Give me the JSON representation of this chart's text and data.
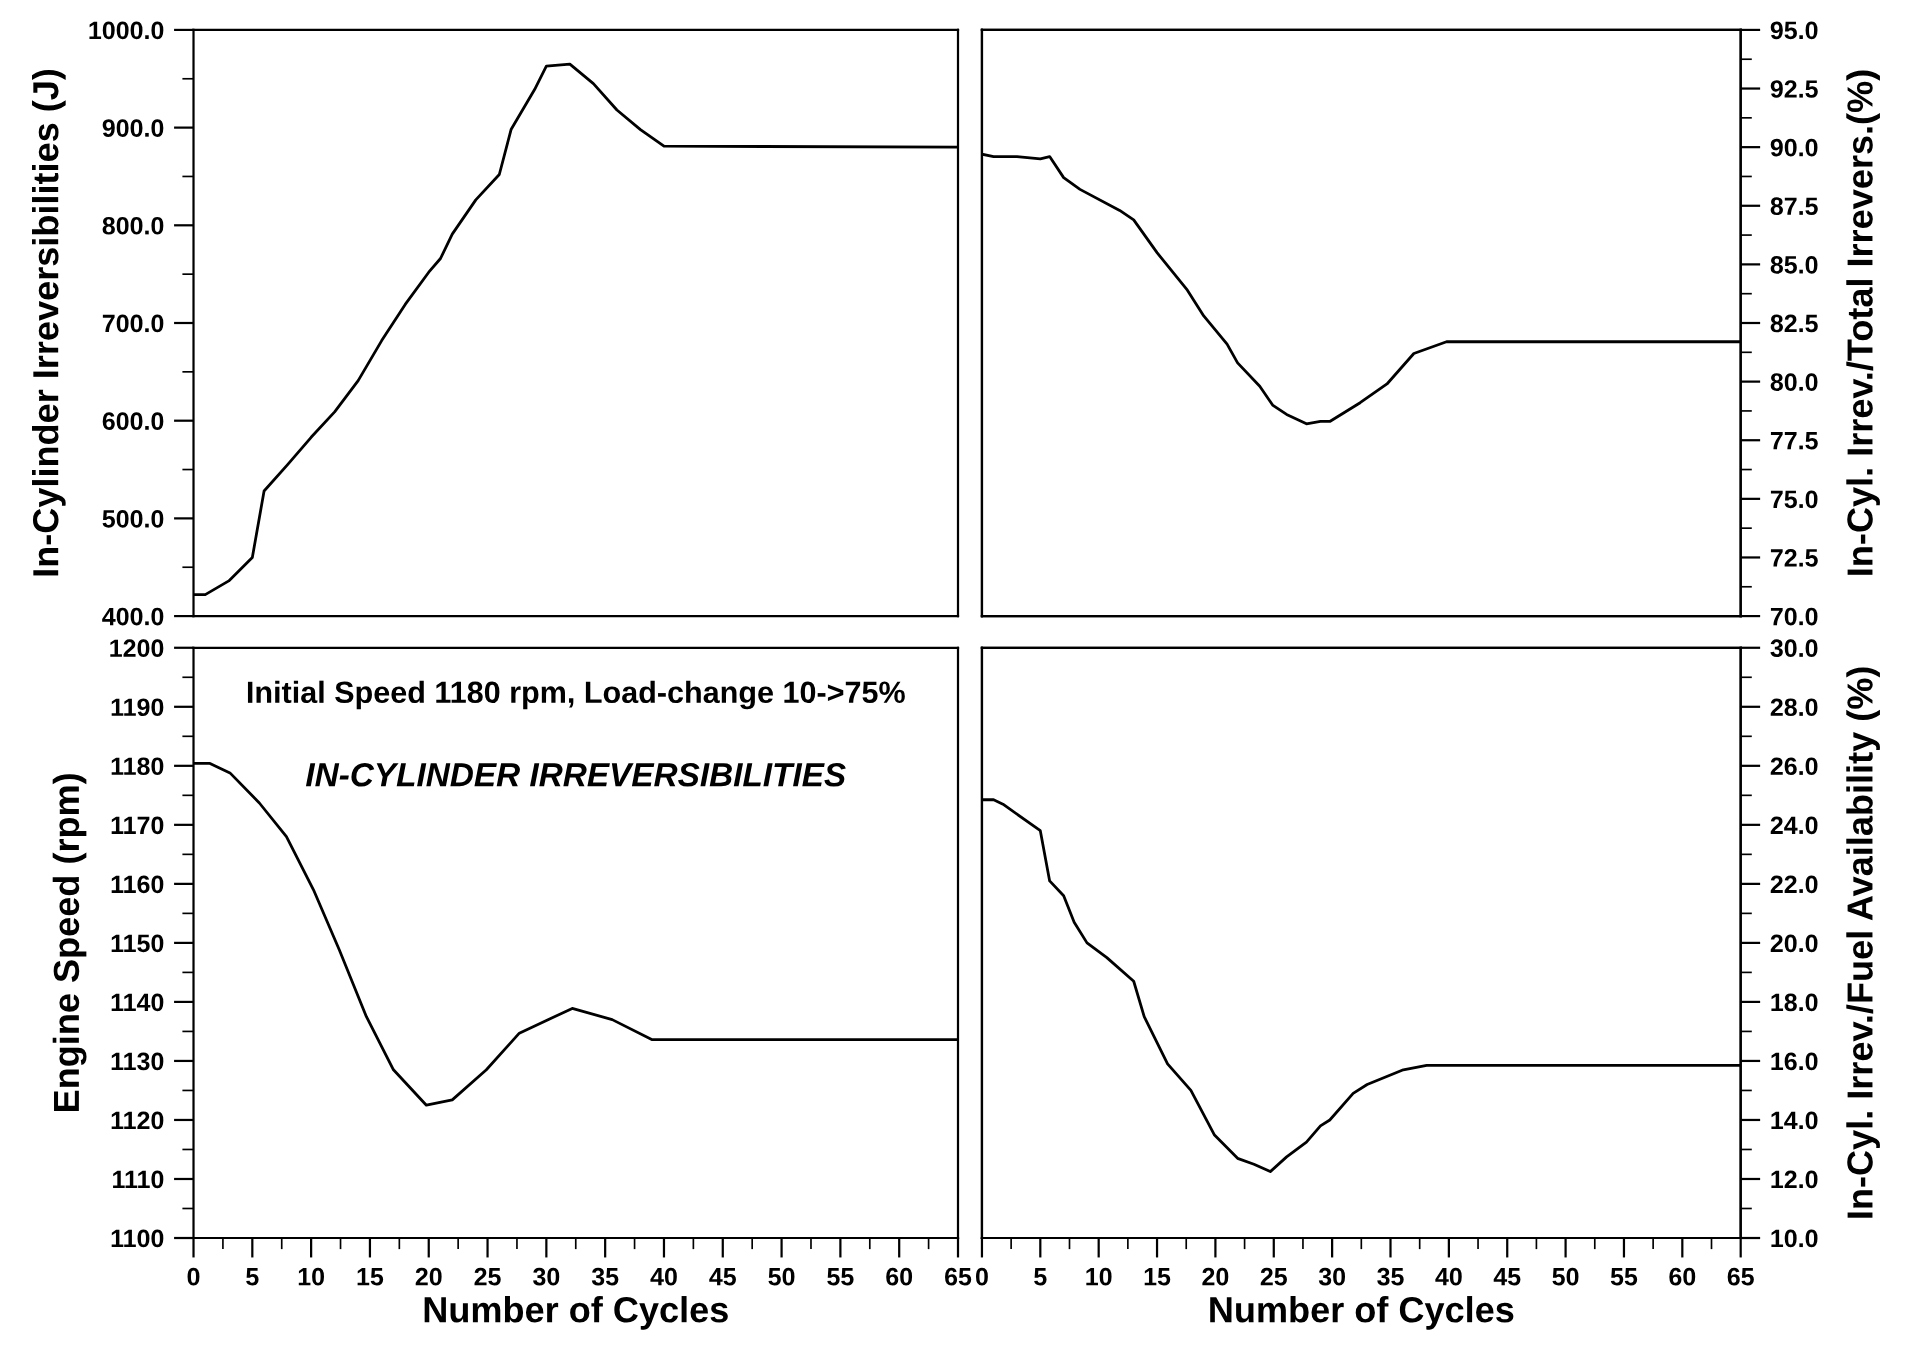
{
  "chart_data": [
    {
      "type": "line",
      "ylabel": "In-Cylinder Irreversibilities (J)",
      "xlim": [
        0,
        65
      ],
      "ylim": [
        400,
        1000
      ],
      "tick_labels": "y",
      "yticks": [
        {
          "value": 400,
          "label": "400.0"
        },
        {
          "value": 450,
          "label": null
        },
        {
          "value": 500,
          "label": "500.0"
        },
        {
          "value": 550,
          "label": null
        },
        {
          "value": 600,
          "label": "600.0"
        },
        {
          "value": 650,
          "label": null
        },
        {
          "value": 700,
          "label": "700.0"
        },
        {
          "value": 750,
          "label": null
        },
        {
          "value": 800,
          "label": "800.0"
        },
        {
          "value": 850,
          "label": null
        },
        {
          "value": 900,
          "label": "900.0"
        },
        {
          "value": 950,
          "label": null
        },
        {
          "value": 1000,
          "label": "1000.0"
        }
      ],
      "series": [
        {
          "color": "#000000",
          "x": [
            0,
            1,
            3,
            5,
            6,
            8,
            10,
            12,
            14,
            16,
            18,
            20,
            21,
            22,
            24,
            26,
            27,
            29,
            30,
            32,
            34,
            36,
            38,
            40,
            65
          ],
          "values": [
            422,
            422,
            436,
            460,
            528,
            555,
            583,
            609,
            641,
            682,
            719,
            752,
            766,
            791,
            826,
            852,
            898,
            939,
            963,
            965,
            945,
            918,
            898,
            881,
            880
          ]
        }
      ]
    },
    {
      "type": "line",
      "y2label": "In-Cyl. Irrev./Total Irrevers.(%)",
      "xlim": [
        0,
        65
      ],
      "y2lim": [
        70,
        95
      ],
      "tick_labels": "y2",
      "y2ticks": [
        {
          "value": 70,
          "label": "70.0"
        },
        {
          "value": 71.25,
          "label": null
        },
        {
          "value": 72.5,
          "label": "72.5"
        },
        {
          "value": 73.75,
          "label": null
        },
        {
          "value": 75,
          "label": "75.0"
        },
        {
          "value": 76.25,
          "label": null
        },
        {
          "value": 77.5,
          "label": "77.5"
        },
        {
          "value": 78.75,
          "label": null
        },
        {
          "value": 80,
          "label": "80.0"
        },
        {
          "value": 81.25,
          "label": null
        },
        {
          "value": 82.5,
          "label": "82.5"
        },
        {
          "value": 83.75,
          "label": null
        },
        {
          "value": 85,
          "label": "85.0"
        },
        {
          "value": 86.25,
          "label": null
        },
        {
          "value": 87.5,
          "label": "87.5"
        },
        {
          "value": 88.75,
          "label": null
        },
        {
          "value": 90,
          "label": "90.0"
        },
        {
          "value": 91.25,
          "label": null
        },
        {
          "value": 92.5,
          "label": "92.5"
        },
        {
          "value": 93.75,
          "label": null
        },
        {
          "value": 95,
          "label": "95.0"
        }
      ],
      "series": [
        {
          "color": "#000000",
          "axis": "y2",
          "x": [
            0,
            1,
            3,
            5,
            5.8,
            7,
            8.4,
            11.8,
            13,
            15,
            17.6,
            19,
            21,
            21.9,
            23.8,
            24.9,
            26.1,
            27.8,
            29,
            29.8,
            32.4,
            34.7,
            37,
            39.8,
            65
          ],
          "values": [
            89.7,
            89.6,
            89.6,
            89.5,
            89.6,
            88.7,
            88.2,
            87.3,
            86.9,
            85.5,
            83.9,
            82.8,
            81.6,
            80.8,
            79.8,
            79.0,
            78.6,
            78.2,
            78.3,
            78.3,
            79.1,
            79.9,
            81.2,
            81.7,
            81.7
          ]
        }
      ]
    },
    {
      "type": "line",
      "ylabel": "Engine Speed (rpm)",
      "xlabel": "Number of Cycles",
      "xlim": [
        0,
        65
      ],
      "ylim": [
        1100,
        1200
      ],
      "annotations": [
        "Initial Speed 1180 rpm, Load-change 10->75%",
        "IN-CYLINDER IRREVERSIBILITIES"
      ],
      "xticks": [
        0,
        {
          "value": 2.5,
          "label": null
        },
        5,
        {
          "value": 7.5,
          "label": null
        },
        10,
        {
          "value": 12.5,
          "label": null
        },
        15,
        {
          "value": 17.5,
          "label": null
        },
        20,
        {
          "value": 22.5,
          "label": null
        },
        25,
        {
          "value": 27.5,
          "label": null
        },
        30,
        {
          "value": 32.5,
          "label": null
        },
        35,
        {
          "value": 37.5,
          "label": null
        },
        40,
        {
          "value": 42.5,
          "label": null
        },
        45,
        {
          "value": 47.5,
          "label": null
        },
        50,
        {
          "value": 52.5,
          "label": null
        },
        55,
        {
          "value": 57.5,
          "label": null
        },
        60,
        {
          "value": 62.5,
          "label": null
        },
        65
      ],
      "yticks": [
        1100,
        {
          "value": 1105,
          "label": null
        },
        1110,
        {
          "value": 1115,
          "label": null
        },
        1120,
        {
          "value": 1125,
          "label": null
        },
        1130,
        {
          "value": 1135,
          "label": null
        },
        1140,
        {
          "value": 1145,
          "label": null
        },
        1150,
        {
          "value": 1155,
          "label": null
        },
        1160,
        {
          "value": 1165,
          "label": null
        },
        1170,
        {
          "value": 1175,
          "label": null
        },
        1180,
        {
          "value": 1185,
          "label": null
        },
        1190,
        {
          "value": 1195,
          "label": null
        },
        1200
      ],
      "series": [
        {
          "color": "#000000",
          "x": [
            0,
            1.4,
            3.1,
            5.6,
            7.9,
            10.2,
            12.4,
            14.7,
            17,
            19.8,
            22,
            24.9,
            27.7,
            32.2,
            35.6,
            39,
            65
          ],
          "values": [
            1180.4,
            1180.4,
            1178.8,
            1173.7,
            1168,
            1159,
            1148.8,
            1137.5,
            1128.5,
            1122.5,
            1123.4,
            1128.5,
            1134.7,
            1138.9,
            1137,
            1133.6,
            1133.6
          ]
        }
      ]
    },
    {
      "type": "line",
      "y2label": "In-Cyl. Irrev./Fuel Availability (%)",
      "xlabel": "Number of Cycles",
      "xlim": [
        0,
        65
      ],
      "y2lim": [
        10,
        30
      ],
      "xticks": [
        {
          "value": 0,
          "label": "0"
        },
        {
          "value": 2.5,
          "label": null
        },
        5,
        {
          "value": 7.5,
          "label": null
        },
        10,
        {
          "value": 12.5,
          "label": null
        },
        15,
        {
          "value": 17.5,
          "label": null
        },
        20,
        {
          "value": 22.5,
          "label": null
        },
        25,
        {
          "value": 27.5,
          "label": null
        },
        30,
        {
          "value": 32.5,
          "label": null
        },
        35,
        {
          "value": 37.5,
          "label": null
        },
        40,
        {
          "value": 42.5,
          "label": null
        },
        45,
        {
          "value": 47.5,
          "label": null
        },
        50,
        {
          "value": 52.5,
          "label": null
        },
        55,
        {
          "value": 57.5,
          "label": null
        },
        60,
        {
          "value": 62.5,
          "label": null
        },
        65
      ],
      "y2ticks": [
        {
          "value": 10,
          "label": "10.0"
        },
        {
          "value": 11,
          "label": null
        },
        {
          "value": 12,
          "label": "12.0"
        },
        {
          "value": 13,
          "label": null
        },
        {
          "value": 14,
          "label": "14.0"
        },
        {
          "value": 15,
          "label": null
        },
        {
          "value": 16,
          "label": "16.0"
        },
        {
          "value": 17,
          "label": null
        },
        {
          "value": 18,
          "label": "18.0"
        },
        {
          "value": 19,
          "label": null
        },
        {
          "value": 20,
          "label": "20.0"
        },
        {
          "value": 21,
          "label": null
        },
        {
          "value": 22,
          "label": "22.0"
        },
        {
          "value": 23,
          "label": null
        },
        {
          "value": 24,
          "label": "24.0"
        },
        {
          "value": 25,
          "label": null
        },
        {
          "value": 26,
          "label": "26.0"
        },
        {
          "value": 27,
          "label": null
        },
        {
          "value": 28,
          "label": "28.0"
        },
        {
          "value": 29,
          "label": null
        },
        {
          "value": 30,
          "label": "30.0"
        }
      ],
      "series": [
        {
          "color": "#000000",
          "axis": "y2",
          "x": [
            0,
            1,
            1.8,
            5,
            5.8,
            7,
            7.9,
            9,
            10.7,
            13,
            13.9,
            15.9,
            17.9,
            19.9,
            21.9,
            23.3,
            24.7,
            26.1,
            27.8,
            29,
            29.8,
            31.8,
            33,
            36.1,
            38.1,
            65
          ],
          "values": [
            24.85,
            24.85,
            24.7,
            23.8,
            22.1,
            21.6,
            20.7,
            20.0,
            19.5,
            18.7,
            17.5,
            15.9,
            15.0,
            13.5,
            12.7,
            12.5,
            12.25,
            12.75,
            13.25,
            13.8,
            14.0,
            14.9,
            15.2,
            15.7,
            15.85,
            15.85
          ]
        }
      ]
    }
  ]
}
